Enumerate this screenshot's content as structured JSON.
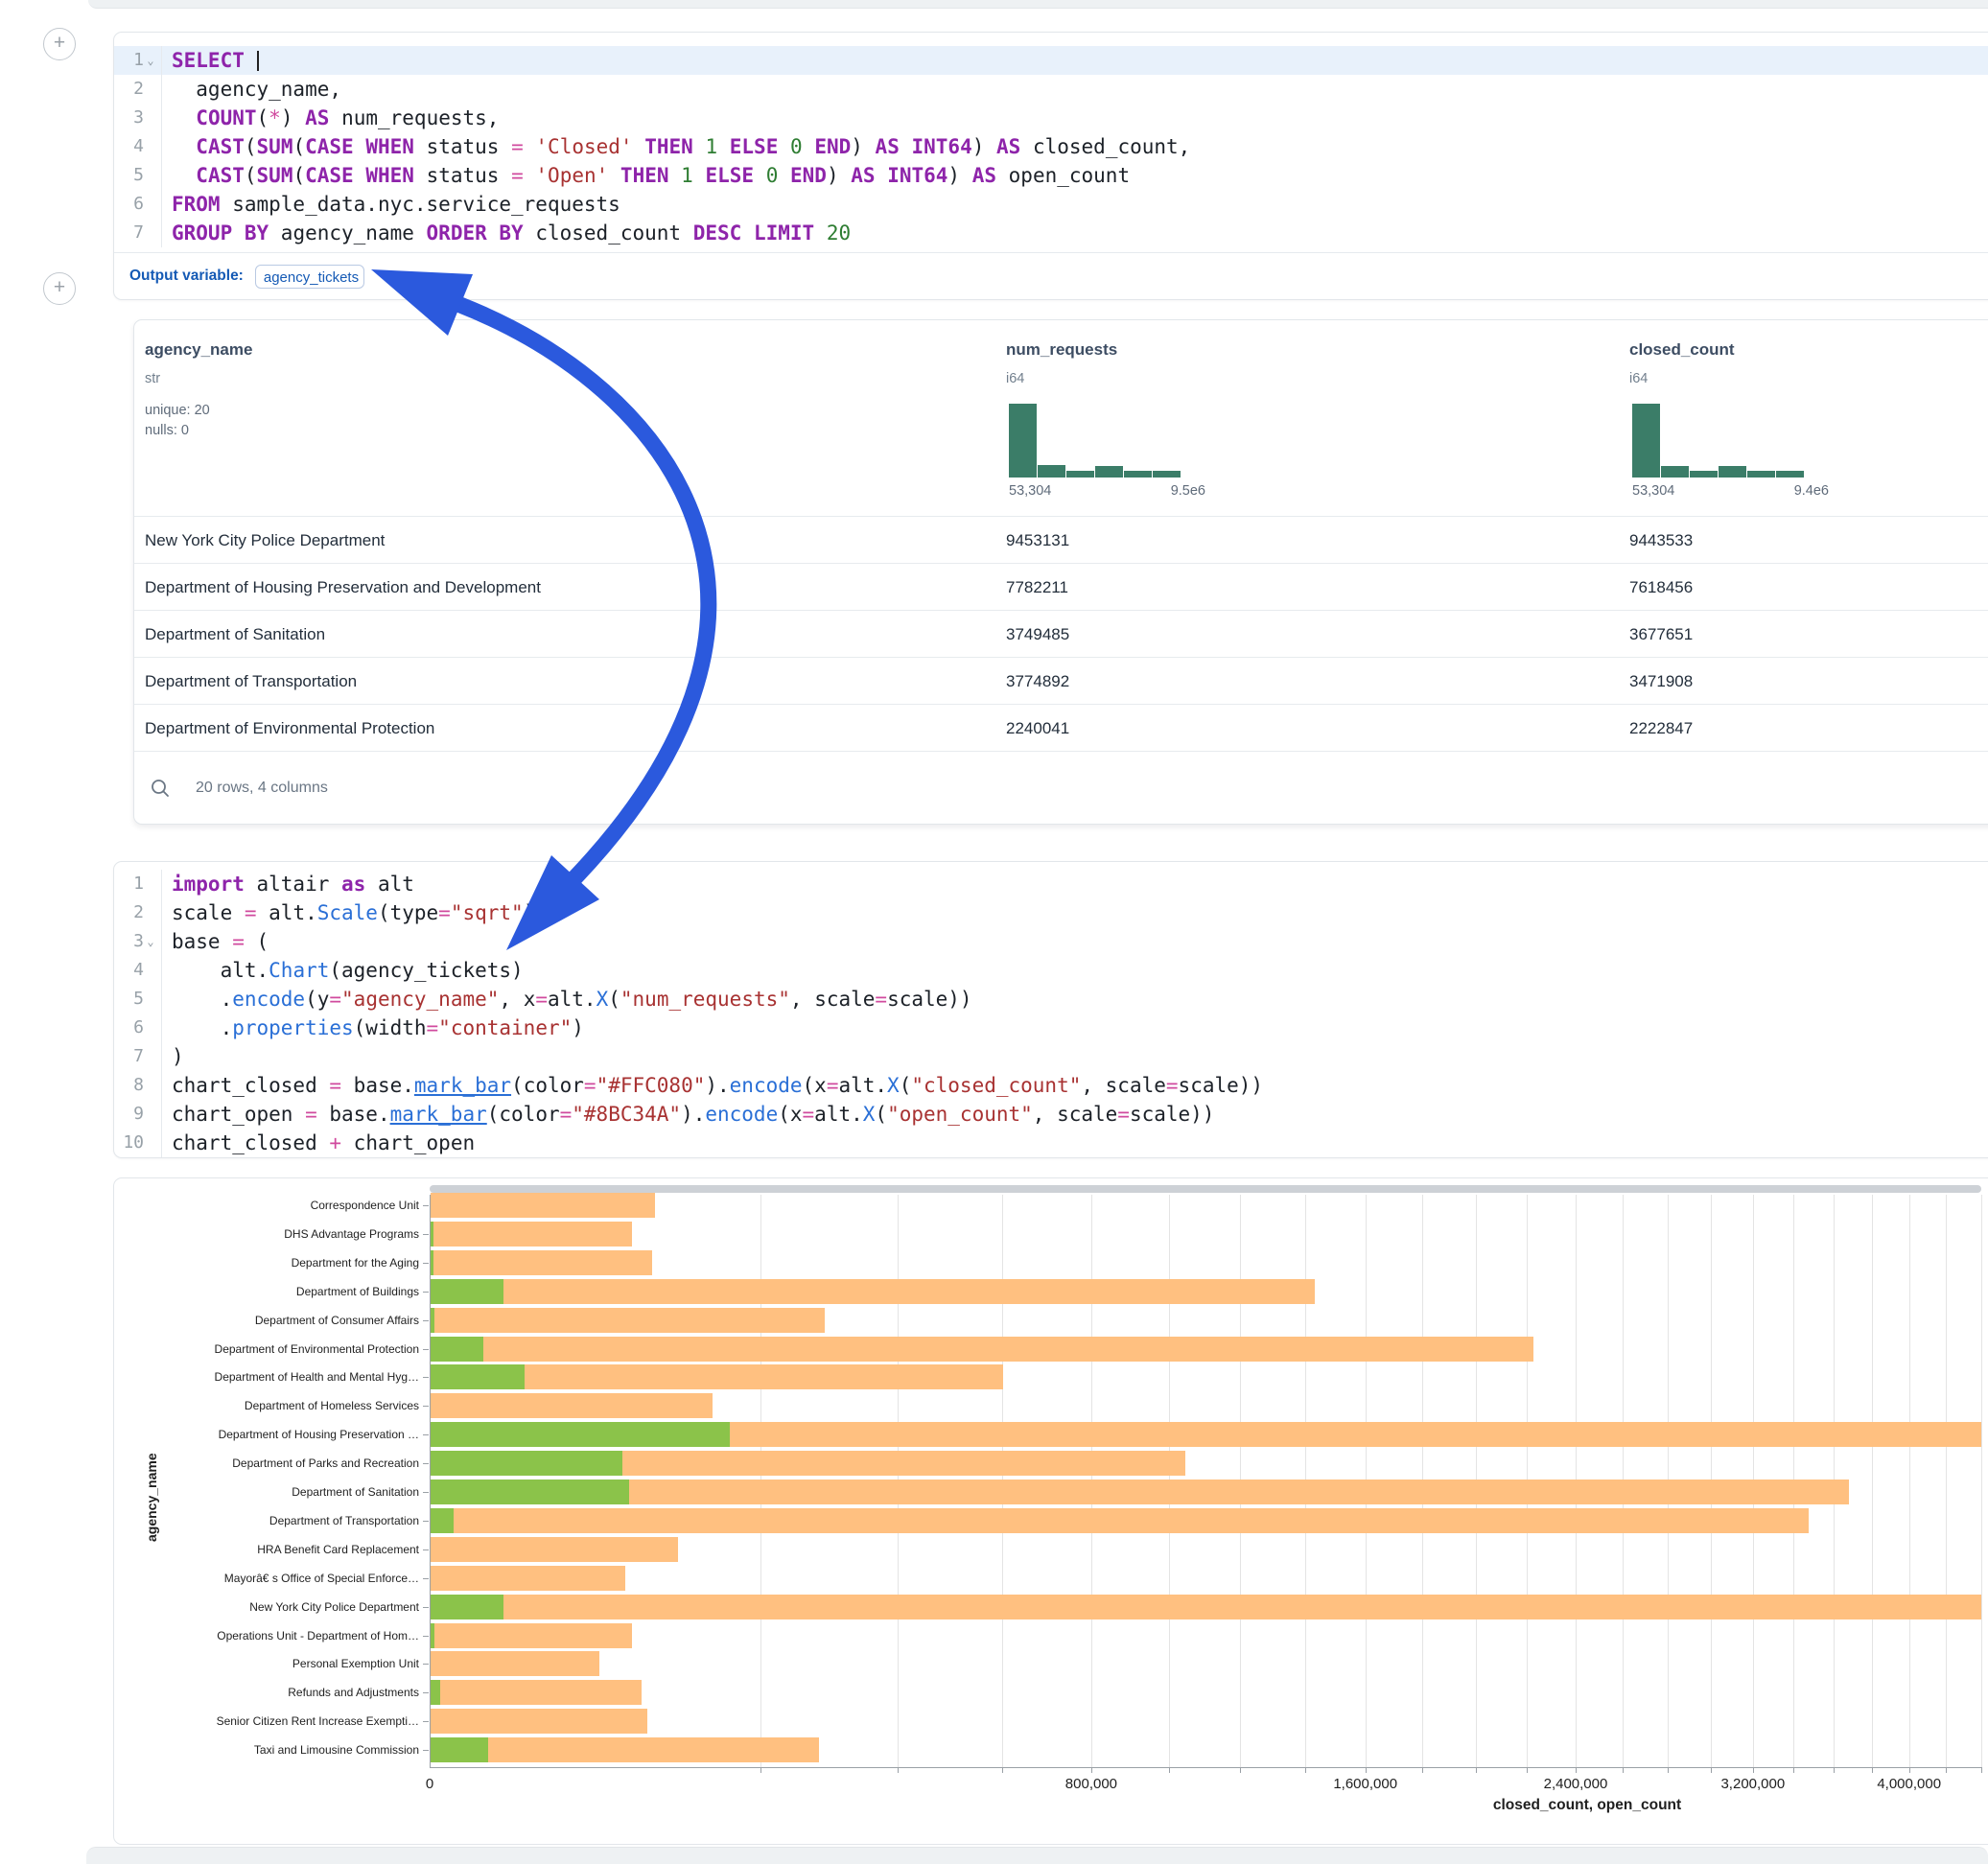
{
  "plus_buttons": {
    "glyph": "+"
  },
  "sql_cell": {
    "output_label": "Output variable:",
    "output_variable": "agency_tickets",
    "lines": [
      {
        "n": "1",
        "fold": true,
        "hl": true,
        "tokens": [
          [
            "kw",
            "SELECT"
          ],
          [
            "t",
            " "
          ],
          [
            "cur",
            ""
          ]
        ]
      },
      {
        "n": "2",
        "tokens": [
          [
            "t",
            "  agency_name,"
          ]
        ]
      },
      {
        "n": "3",
        "tokens": [
          [
            "t",
            "  "
          ],
          [
            "kw",
            "COUNT"
          ],
          [
            "t",
            "("
          ],
          [
            "op",
            "*"
          ],
          [
            "t",
            ") "
          ],
          [
            "kw",
            "AS"
          ],
          [
            "t",
            " num_requests,"
          ]
        ]
      },
      {
        "n": "4",
        "tokens": [
          [
            "t",
            "  "
          ],
          [
            "kw",
            "CAST"
          ],
          [
            "t",
            "("
          ],
          [
            "kw",
            "SUM"
          ],
          [
            "t",
            "("
          ],
          [
            "kw",
            "CASE"
          ],
          [
            "t",
            " "
          ],
          [
            "kw",
            "WHEN"
          ],
          [
            "t",
            " status "
          ],
          [
            "op",
            "="
          ],
          [
            "t",
            " "
          ],
          [
            "str",
            "'Closed'"
          ],
          [
            "t",
            " "
          ],
          [
            "kw",
            "THEN"
          ],
          [
            "t",
            " "
          ],
          [
            "num",
            "1"
          ],
          [
            "t",
            " "
          ],
          [
            "kw",
            "ELSE"
          ],
          [
            "t",
            " "
          ],
          [
            "num",
            "0"
          ],
          [
            "t",
            " "
          ],
          [
            "kw",
            "END"
          ],
          [
            "t",
            ") "
          ],
          [
            "kw",
            "AS"
          ],
          [
            "t",
            " "
          ],
          [
            "kw",
            "INT64"
          ],
          [
            "t",
            ") "
          ],
          [
            "kw",
            "AS"
          ],
          [
            "t",
            " closed_count,"
          ]
        ]
      },
      {
        "n": "5",
        "tokens": [
          [
            "t",
            "  "
          ],
          [
            "kw",
            "CAST"
          ],
          [
            "t",
            "("
          ],
          [
            "kw",
            "SUM"
          ],
          [
            "t",
            "("
          ],
          [
            "kw",
            "CASE"
          ],
          [
            "t",
            " "
          ],
          [
            "kw",
            "WHEN"
          ],
          [
            "t",
            " status "
          ],
          [
            "op",
            "="
          ],
          [
            "t",
            " "
          ],
          [
            "str",
            "'Open'"
          ],
          [
            "t",
            " "
          ],
          [
            "kw",
            "THEN"
          ],
          [
            "t",
            " "
          ],
          [
            "num",
            "1"
          ],
          [
            "t",
            " "
          ],
          [
            "kw",
            "ELSE"
          ],
          [
            "t",
            " "
          ],
          [
            "num",
            "0"
          ],
          [
            "t",
            " "
          ],
          [
            "kw",
            "END"
          ],
          [
            "t",
            ") "
          ],
          [
            "kw",
            "AS"
          ],
          [
            "t",
            " "
          ],
          [
            "kw",
            "INT64"
          ],
          [
            "t",
            ") "
          ],
          [
            "kw",
            "AS"
          ],
          [
            "t",
            " open_count"
          ]
        ]
      },
      {
        "n": "6",
        "tokens": [
          [
            "kw",
            "FROM"
          ],
          [
            "t",
            " sample_data.nyc.service_requests"
          ]
        ]
      },
      {
        "n": "7",
        "tokens": [
          [
            "kw",
            "GROUP BY"
          ],
          [
            "t",
            " agency_name "
          ],
          [
            "kw",
            "ORDER BY"
          ],
          [
            "t",
            " closed_count "
          ],
          [
            "kw",
            "DESC"
          ],
          [
            "t",
            " "
          ],
          [
            "kw",
            "LIMIT"
          ],
          [
            "t",
            " "
          ],
          [
            "num",
            "20"
          ]
        ]
      }
    ]
  },
  "table": {
    "footer": "20 rows, 4 columns",
    "columns": [
      {
        "name": "agency_name",
        "type": "str",
        "stats": [
          "unique: 20",
          "nulls: 0"
        ]
      },
      {
        "name": "num_requests",
        "type": "i64",
        "hist": {
          "bars": [
            1,
            0.17,
            0.09,
            0.16,
            0.09,
            0.09
          ],
          "min_label": "53,304",
          "max_label": "9.5e6"
        }
      },
      {
        "name": "closed_count",
        "type": "i64",
        "hist": {
          "bars": [
            1,
            0.16,
            0.09,
            0.16,
            0.09,
            0.09
          ],
          "min_label": "53,304",
          "max_label": "9.4e6"
        }
      }
    ],
    "rows": [
      [
        "New York City Police Department",
        "9453131",
        "9443533"
      ],
      [
        "Department of Housing Preservation and Development",
        "7782211",
        "7618456"
      ],
      [
        "Department of Sanitation",
        "3749485",
        "3677651"
      ],
      [
        "Department of Transportation",
        "3774892",
        "3471908"
      ],
      [
        "Department of Environmental Protection",
        "2240041",
        "2222847"
      ]
    ]
  },
  "python_cell": {
    "lines": [
      {
        "n": "1",
        "tokens": [
          [
            "kw",
            "import"
          ],
          [
            "t",
            " altair "
          ],
          [
            "kw",
            "as"
          ],
          [
            "t",
            " alt"
          ]
        ]
      },
      {
        "n": "2",
        "tokens": [
          [
            "t",
            "scale "
          ],
          [
            "op",
            "="
          ],
          [
            "t",
            " alt."
          ],
          [
            "fn",
            "Scale"
          ],
          [
            "t",
            "(type"
          ],
          [
            "op",
            "="
          ],
          [
            "str",
            "\"sqrt\""
          ],
          [
            "t",
            ")"
          ]
        ]
      },
      {
        "n": "3",
        "fold": true,
        "tokens": [
          [
            "t",
            "base "
          ],
          [
            "op",
            "="
          ],
          [
            "t",
            " ("
          ]
        ]
      },
      {
        "n": "4",
        "tokens": [
          [
            "t",
            "    alt."
          ],
          [
            "fn",
            "Chart"
          ],
          [
            "t",
            "(agency_tickets)"
          ]
        ]
      },
      {
        "n": "5",
        "tokens": [
          [
            "t",
            "    ."
          ],
          [
            "fn",
            "encode"
          ],
          [
            "t",
            "(y"
          ],
          [
            "op",
            "="
          ],
          [
            "str",
            "\"agency_name\""
          ],
          [
            "t",
            ", x"
          ],
          [
            "op",
            "="
          ],
          [
            "t",
            "alt."
          ],
          [
            "fn",
            "X"
          ],
          [
            "t",
            "("
          ],
          [
            "str",
            "\"num_requests\""
          ],
          [
            "t",
            ", scale"
          ],
          [
            "op",
            "="
          ],
          [
            "t",
            "scale))"
          ]
        ]
      },
      {
        "n": "6",
        "tokens": [
          [
            "t",
            "    ."
          ],
          [
            "fn",
            "properties"
          ],
          [
            "t",
            "(width"
          ],
          [
            "op",
            "="
          ],
          [
            "str",
            "\"container\""
          ],
          [
            "t",
            ")"
          ]
        ]
      },
      {
        "n": "7",
        "tokens": [
          [
            "t",
            ")"
          ]
        ]
      },
      {
        "n": "8",
        "tokens": [
          [
            "t",
            "chart_closed "
          ],
          [
            "op",
            "="
          ],
          [
            "t",
            " base."
          ],
          [
            "fnu",
            "mark_bar"
          ],
          [
            "t",
            "(color"
          ],
          [
            "op",
            "="
          ],
          [
            "str",
            "\"#FFC080\""
          ],
          [
            "t",
            ")."
          ],
          [
            "fn",
            "encode"
          ],
          [
            "t",
            "(x"
          ],
          [
            "op",
            "="
          ],
          [
            "t",
            "alt."
          ],
          [
            "fn",
            "X"
          ],
          [
            "t",
            "("
          ],
          [
            "str",
            "\"closed_count\""
          ],
          [
            "t",
            ", scale"
          ],
          [
            "op",
            "="
          ],
          [
            "t",
            "scale))"
          ]
        ]
      },
      {
        "n": "9",
        "tokens": [
          [
            "t",
            "chart_open "
          ],
          [
            "op",
            "="
          ],
          [
            "t",
            " base."
          ],
          [
            "fnu",
            "mark_bar"
          ],
          [
            "t",
            "(color"
          ],
          [
            "op",
            "="
          ],
          [
            "str",
            "\"#8BC34A\""
          ],
          [
            "t",
            ")."
          ],
          [
            "fn",
            "encode"
          ],
          [
            "t",
            "(x"
          ],
          [
            "op",
            "="
          ],
          [
            "t",
            "alt."
          ],
          [
            "fn",
            "X"
          ],
          [
            "t",
            "("
          ],
          [
            "str",
            "\"open_count\""
          ],
          [
            "t",
            ", scale"
          ],
          [
            "op",
            "="
          ],
          [
            "t",
            "scale))"
          ]
        ]
      },
      {
        "n": "10",
        "tokens": [
          [
            "t",
            "chart_closed "
          ],
          [
            "op",
            "+"
          ],
          [
            "t",
            " chart_open"
          ]
        ]
      }
    ]
  },
  "chart_data": {
    "type": "bar",
    "orientation": "horizontal",
    "x_scale": "sqrt",
    "xlabel": "closed_count, open_count",
    "ylabel": "agency_name",
    "categories": [
      "Correspondence Unit",
      "DHS Advantage Programs",
      "Department for the Aging",
      "Department of Buildings",
      "Department of Consumer Affairs",
      "Department of Environmental Protection",
      "Department of Health and Mental Hyg…",
      "Department of Homeless Services",
      "Department of Housing Preservation …",
      "Department of Parks and Recreation",
      "Department of Sanitation",
      "Department of Transportation",
      "HRA Benefit Card Replacement",
      "Mayorâ€ s Office of Special Enforce…",
      "New York City Police Department",
      "Operations Unit - Department of Hom…",
      "Personal Exemption Unit",
      "Refunds and Adjustments",
      "Senior Citizen Rent Increase Exempti…",
      "Taxi and Limousine Commission"
    ],
    "series": [
      {
        "name": "closed_count",
        "color": "#FFC080",
        "values": [
          92000,
          74000,
          90000,
          1430000,
          284000,
          2222847,
          600000,
          145000,
          7618456,
          1040000,
          3677651,
          3471908,
          112000,
          69000,
          9443533,
          74000,
          52000,
          81000,
          86000,
          275000
        ]
      },
      {
        "name": "open_count",
        "color": "#8BC34A",
        "values": [
          0,
          20,
          20,
          9600,
          30,
          5000,
          16000,
          0,
          163755,
          67000,
          71834,
          1000,
          0,
          0,
          9598,
          30,
          0,
          170,
          0,
          6000
        ]
      }
    ],
    "axis": {
      "x_label_ticks": [
        0,
        800000,
        1600000,
        2400000,
        3200000,
        4000000
      ],
      "x_tick_labels": [
        "0",
        "800,000",
        "1,600,000",
        "2,400,000",
        "3,200,000",
        "4,000,000"
      ],
      "x_minor_step": 200000,
      "x_max_visible": 4400000,
      "grid": true
    }
  },
  "arrow": {
    "color": "#2b59dd"
  }
}
